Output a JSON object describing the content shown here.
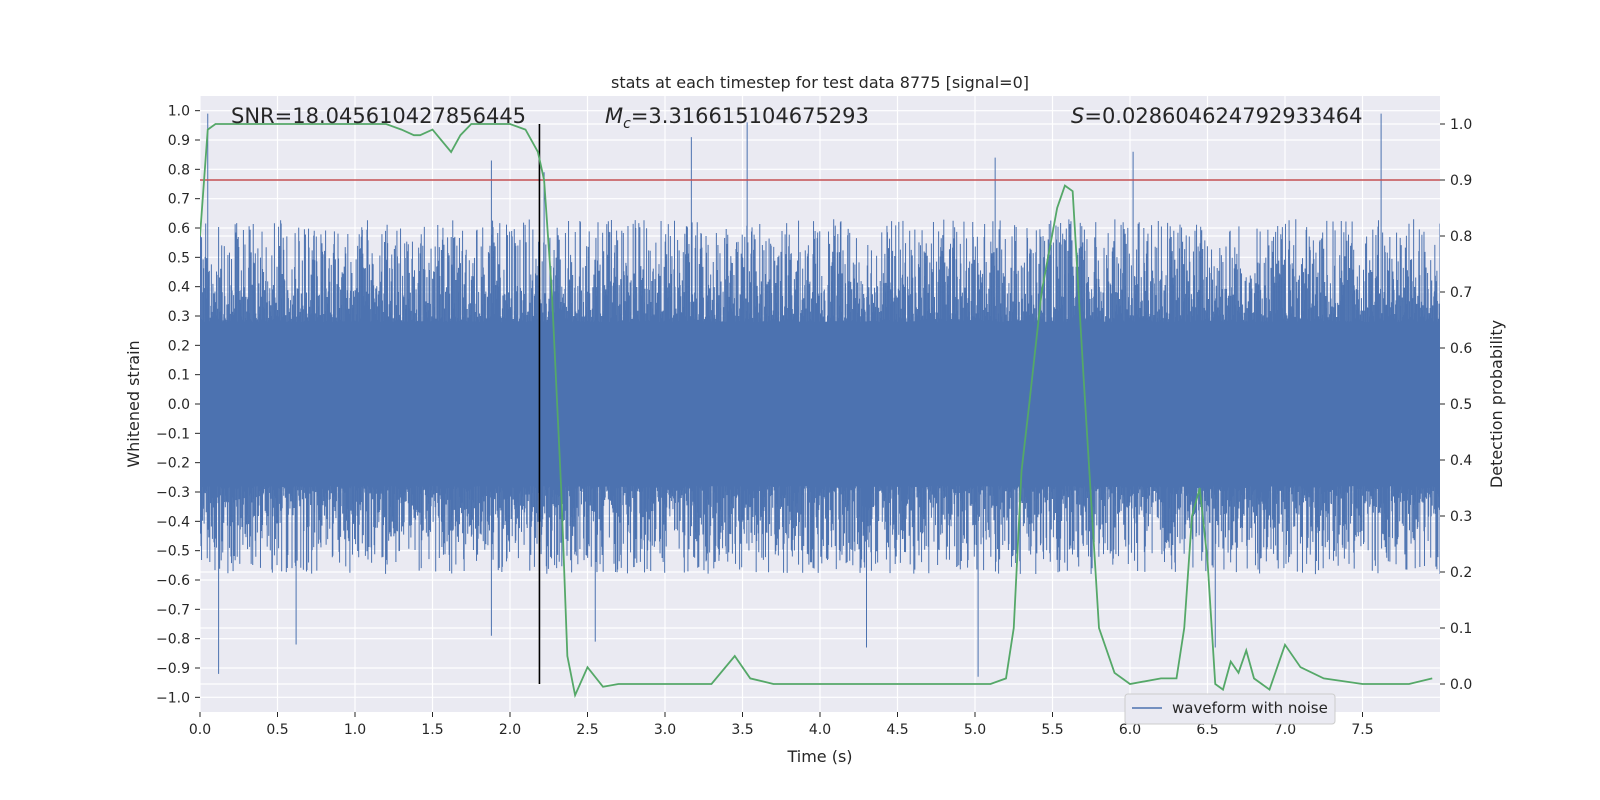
{
  "chart_data": {
    "type": "line",
    "title": "stats at each timestep for test data 8775 [signal=0]",
    "xlabel": "Time (s)",
    "ylabel": "Whitened strain",
    "y2label": "Detection probability",
    "xlim": [
      0.0,
      8.0
    ],
    "ylim": [
      -1.05,
      1.05
    ],
    "y2lim": [
      -0.05,
      1.05
    ],
    "x_ticks": [
      "0.0",
      "0.5",
      "1.0",
      "1.5",
      "2.0",
      "2.5",
      "3.0",
      "3.5",
      "4.0",
      "4.5",
      "5.0",
      "5.5",
      "6.0",
      "6.5",
      "7.0",
      "7.5"
    ],
    "y_ticks": [
      "−1.0",
      "−0.9",
      "−0.8",
      "−0.7",
      "−0.6",
      "−0.5",
      "−0.4",
      "−0.3",
      "−0.2",
      "−0.1",
      "0.0",
      "0.1",
      "0.2",
      "0.3",
      "0.4",
      "0.5",
      "0.6",
      "0.7",
      "0.8",
      "0.9",
      "1.0"
    ],
    "y2_ticks": [
      "0.0",
      "0.1",
      "0.2",
      "0.3",
      "0.4",
      "0.5",
      "0.6",
      "0.7",
      "0.8",
      "0.9",
      "1.0"
    ],
    "grid": true,
    "legend_placement": "lower-right",
    "annotations": {
      "snr_text": "SNR=18.045610427856445",
      "mc_symbol": "M",
      "mc_sub": "c",
      "mc_value": "=3.316615104675293",
      "s_symbol": "S",
      "s_value": "=0.028604624792933464"
    },
    "threshold_line": {
      "axis": "y2",
      "value": 0.9
    },
    "vertical_line": {
      "x": 2.19,
      "y2_range": [
        0.0,
        1.0
      ]
    },
    "series": [
      {
        "name": "waveform with noise",
        "axis": "y",
        "color": "#4c72b0",
        "description": "dense noise trace, roughly -0.5..0.6 with spikes",
        "spikes": [
          {
            "x": 0.05,
            "y": 0.99
          },
          {
            "x": 0.12,
            "y": -0.92
          },
          {
            "x": 0.62,
            "y": -0.82
          },
          {
            "x": 1.88,
            "y": 0.83
          },
          {
            "x": 1.88,
            "y": -0.79
          },
          {
            "x": 2.22,
            "y": 0.79
          },
          {
            "x": 2.55,
            "y": -0.81
          },
          {
            "x": 3.17,
            "y": 0.91
          },
          {
            "x": 3.53,
            "y": 0.96
          },
          {
            "x": 4.3,
            "y": -0.83
          },
          {
            "x": 5.02,
            "y": -0.93
          },
          {
            "x": 5.13,
            "y": 0.84
          },
          {
            "x": 6.02,
            "y": 0.86
          },
          {
            "x": 6.55,
            "y": -0.83
          },
          {
            "x": 7.62,
            "y": 0.99
          }
        ]
      },
      {
        "name": "",
        "axis": "y2",
        "color": "#55a868",
        "x": [
          0.0,
          0.05,
          0.1,
          0.2,
          0.3,
          0.5,
          0.8,
          1.0,
          1.2,
          1.3,
          1.38,
          1.42,
          1.5,
          1.62,
          1.68,
          1.75,
          1.85,
          2.0,
          2.1,
          2.18,
          2.22,
          2.27,
          2.33,
          2.37,
          2.42,
          2.5,
          2.6,
          2.7,
          3.0,
          3.3,
          3.45,
          3.55,
          3.7,
          4.0,
          4.5,
          5.0,
          5.1,
          5.2,
          5.25,
          5.3,
          5.35,
          5.43,
          5.53,
          5.58,
          5.63,
          5.7,
          5.8,
          5.9,
          6.0,
          6.2,
          6.3,
          6.35,
          6.4,
          6.45,
          6.5,
          6.55,
          6.6,
          6.65,
          6.7,
          6.75,
          6.8,
          6.9,
          7.0,
          7.1,
          7.25,
          7.5,
          7.8,
          7.95
        ],
        "y": [
          0.8,
          0.99,
          1.0,
          1.0,
          1.0,
          1.0,
          1.0,
          1.0,
          1.0,
          0.99,
          0.98,
          0.98,
          0.99,
          0.95,
          0.98,
          1.0,
          1.0,
          1.0,
          0.99,
          0.95,
          0.9,
          0.7,
          0.35,
          0.05,
          -0.02,
          0.03,
          -0.005,
          0.0,
          0.0,
          0.0,
          0.05,
          0.01,
          0.0,
          0.0,
          0.0,
          0.0,
          0.0,
          0.01,
          0.1,
          0.38,
          0.5,
          0.7,
          0.85,
          0.89,
          0.88,
          0.55,
          0.1,
          0.02,
          0.0,
          0.01,
          0.01,
          0.1,
          0.3,
          0.35,
          0.22,
          0.0,
          -0.01,
          0.04,
          0.02,
          0.06,
          0.01,
          -0.01,
          0.07,
          0.03,
          0.01,
          0.0,
          0.0,
          0.01
        ]
      }
    ]
  }
}
